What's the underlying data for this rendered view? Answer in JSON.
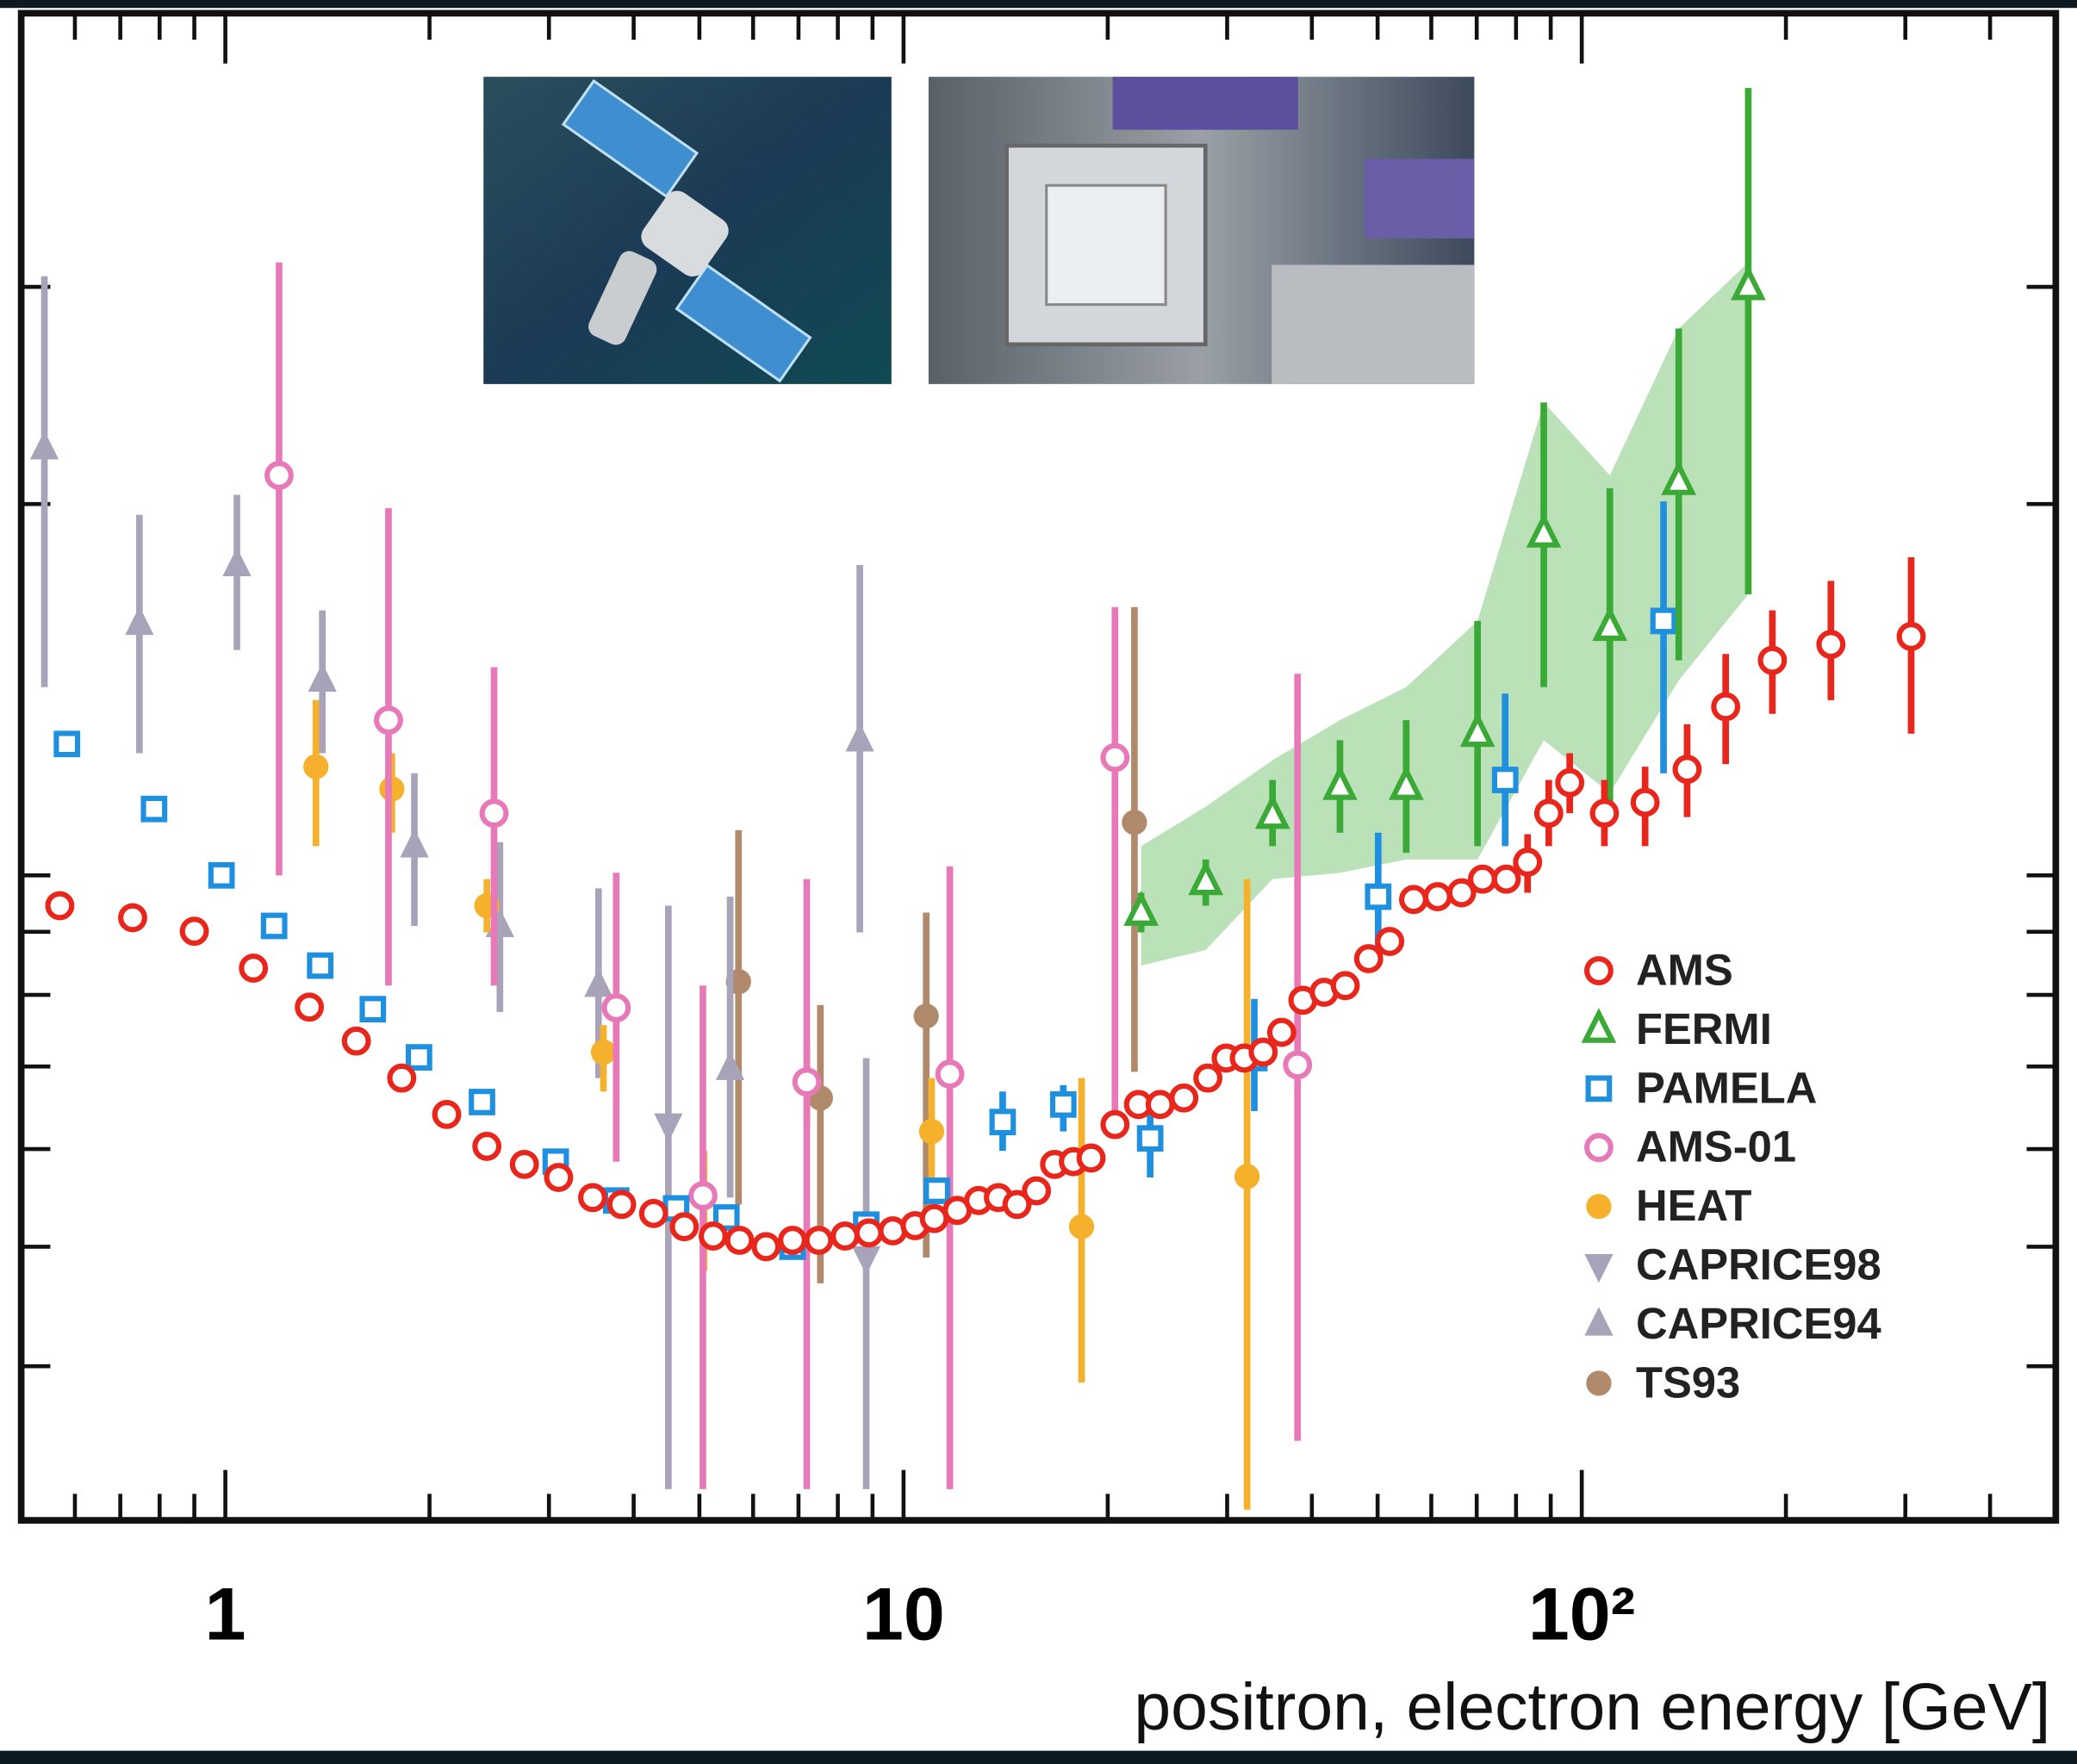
{
  "chart_data": {
    "type": "scatter",
    "xlabel": "positron, electron energy [GeV]",
    "xscale": "log",
    "yscale": "log",
    "xlim": [
      0.5,
      500
    ],
    "ylim": [
      0.03,
      0.5
    ],
    "xticks": [
      1,
      10,
      {
        "value": 100,
        "label": "10²"
      }
    ],
    "xminorticks": [
      0.6,
      0.7,
      0.8,
      0.9,
      2,
      3,
      4,
      5,
      6,
      7,
      8,
      9,
      20,
      30,
      40,
      50,
      60,
      70,
      80,
      90,
      200,
      300,
      400
    ],
    "yticks": [
      0.04,
      0.05,
      0.06,
      0.07,
      0.08,
      0.09,
      0.1,
      0.2,
      0.3
    ],
    "legend": "lower right",
    "series": [
      {
        "name": "AMS",
        "color": "#e8261b",
        "marker": "circle-open",
        "x": [
          0.57,
          0.73,
          0.9,
          1.1,
          1.33,
          1.56,
          1.82,
          2.12,
          2.43,
          2.76,
          3.1,
          3.48,
          3.84,
          4.28,
          4.75,
          5.24,
          5.73,
          6.27,
          6.86,
          7.5,
          8.2,
          8.89,
          9.64,
          10.4,
          11.1,
          12.0,
          12.9,
          13.8,
          14.7,
          15.7,
          16.7,
          17.8,
          18.9,
          20.5,
          22.2,
          23.9,
          25.9,
          28.1,
          29.9,
          31.8,
          33.9,
          36.1,
          38.8,
          41.7,
          44.8,
          48.5,
          52.1,
          56.5,
          61.3,
          66.5,
          71.4,
          77.4,
          83.2,
          89.4,
          96.0,
          108,
          124,
          143,
          163,
          191,
          233,
          306
        ],
        "values": [
          0.0945,
          0.0924,
          0.0901,
          0.0841,
          0.0782,
          0.0734,
          0.0685,
          0.064,
          0.0603,
          0.0583,
          0.0569,
          0.0548,
          0.0541,
          0.0532,
          0.0519,
          0.051,
          0.0506,
          0.05,
          0.0506,
          0.0506,
          0.051,
          0.0513,
          0.0515,
          0.052,
          0.0527,
          0.0535,
          0.0545,
          0.0548,
          0.0541,
          0.0555,
          0.0583,
          0.0586,
          0.059,
          0.0628,
          0.0652,
          0.0652,
          0.066,
          0.0685,
          0.0711,
          0.0711,
          0.0719,
          0.0746,
          0.0792,
          0.0804,
          0.0814,
          0.0856,
          0.0884,
          0.0956,
          0.0961,
          0.0968,
          0.0993,
          0.0993,
          0.1025,
          0.1123,
          0.1189,
          0.1123,
          0.1146,
          0.1219,
          0.137,
          0.1494,
          0.1539,
          0.1562
        ],
        "lower": [
          null,
          null,
          null,
          null,
          null,
          null,
          null,
          null,
          null,
          null,
          null,
          null,
          null,
          null,
          null,
          null,
          null,
          null,
          null,
          null,
          null,
          null,
          null,
          null,
          null,
          null,
          null,
          null,
          null,
          null,
          null,
          null,
          null,
          null,
          null,
          null,
          null,
          null,
          null,
          null,
          null,
          null,
          null,
          null,
          null,
          null,
          null,
          null,
          null,
          null,
          null,
          null,
          0.0968,
          0.1056,
          0.1123,
          0.1056,
          0.1056,
          0.1115,
          0.1231,
          0.1352,
          0.1387,
          0.1303
        ],
        "upper": [
          null,
          null,
          null,
          null,
          null,
          null,
          null,
          null,
          null,
          null,
          null,
          null,
          null,
          null,
          null,
          null,
          null,
          null,
          null,
          null,
          null,
          null,
          null,
          null,
          null,
          null,
          null,
          null,
          null,
          null,
          null,
          null,
          null,
          null,
          null,
          null,
          null,
          null,
          null,
          null,
          null,
          null,
          null,
          null,
          null,
          null,
          null,
          null,
          null,
          null,
          null,
          null,
          0.108,
          0.1195,
          0.1256,
          0.1195,
          0.1225,
          0.1326,
          0.1512,
          0.164,
          0.1733,
          0.1811
        ]
      },
      {
        "name": "FERMI",
        "color": "#3aa935",
        "marker": "triangle-open",
        "x": [
          22.4,
          27.9,
          35.0,
          44.0,
          55.1,
          70.2,
          87.9,
          110,
          139,
          176
        ],
        "values": [
          0.0933,
          0.0988,
          0.1118,
          0.118,
          0.118,
          0.1303,
          0.189,
          0.1588,
          0.2085,
          0.3
        ],
        "lower": [
          0.0899,
          0.0945,
          0.1056,
          0.1083,
          0.1043,
          0.1056,
          0.1421,
          0.1137,
          0.1494,
          0.169
        ],
        "upper": [
          0.0968,
          0.103,
          0.1195,
          0.1287,
          0.1336,
          0.1608,
          0.2418,
          0.206,
          0.2776,
          0.4349
        ],
        "band_lower": [
          0.0845,
          0.087,
          0.0993,
          0.1005,
          0.103,
          0.103,
          0.1287,
          0.1166,
          0.1439,
          0.169
        ],
        "band_upper": [
          0.1056,
          0.1137,
          0.124,
          0.1336,
          0.1421,
          0.1608,
          0.2418,
          0.211,
          0.2776,
          0.314
        ]
      },
      {
        "name": "PAMELA",
        "color": "#1f8fe0",
        "marker": "square-open",
        "x": [
          0.584,
          0.785,
          0.987,
          1.18,
          1.38,
          1.65,
          1.93,
          2.39,
          3.07,
          3.77,
          4.62,
          5.48,
          6.86,
          8.81,
          11.2,
          14.0,
          17.2,
          23.1,
          32.9,
          50.1,
          77.1,
          132
        ],
        "values": [
          0.1278,
          0.1132,
          0.1,
          0.091,
          0.0845,
          0.0779,
          0.0712,
          0.0655,
          0.0586,
          0.0545,
          0.0537,
          0.0528,
          0.05,
          0.0521,
          0.0555,
          0.0631,
          0.0652,
          0.0612,
          0.0711,
          0.0961,
          0.1195,
          0.1608
        ],
        "lower": [
          null,
          null,
          null,
          null,
          null,
          null,
          null,
          null,
          null,
          null,
          null,
          null,
          null,
          null,
          null,
          0.0598,
          0.062,
          0.0569,
          0.0644,
          0.0866,
          0.1056,
          0.121
        ],
        "upper": [
          null,
          null,
          null,
          null,
          null,
          null,
          null,
          null,
          null,
          null,
          null,
          null,
          null,
          null,
          null,
          0.0668,
          0.0676,
          0.0644,
          0.0794,
          0.1083,
          0.1404,
          0.201
        ]
      },
      {
        "name": "AMS-01",
        "color": "#e879b8",
        "marker": "circle-open",
        "x": [
          1.2,
          1.74,
          2.49,
          3.77,
          5.06,
          7.2,
          11.7,
          20.5,
          38.1
        ],
        "values": [
          0.211,
          0.1336,
          0.1123,
          0.0781,
          0.055,
          0.068,
          0.069,
          0.1246,
          0.0702
        ],
        "lower": [
          0.1,
          0.0814,
          0.0814,
          0.0586,
          0.0318,
          0.0318,
          0.0318,
          0.0644,
          0.0348
        ],
        "upper": [
          0.314,
          0.1985,
          0.1475,
          0.1005,
          0.0814,
          0.0993,
          0.1017,
          0.165,
          0.1457
        ]
      },
      {
        "name": "HEAT",
        "color": "#f5b02c",
        "marker": "circle",
        "x": [
          1.36,
          1.76,
          2.43,
          3.61,
          5.08,
          7.2,
          11.0,
          18.3,
          32.1
        ],
        "values": [
          0.1225,
          0.1175,
          0.0945,
          0.0719,
          0.0548,
          0.068,
          0.062,
          0.0519,
          0.057
        ],
        "lower": [
          0.1056,
          0.1083,
          0.0899,
          0.0668,
          0.0478,
          0.0628,
          0.0562,
          0.0388,
          0.0306
        ],
        "upper": [
          0.1387,
          0.1256,
          0.0993,
          0.0756,
          0.0598,
          0.0729,
          0.0685,
          0.0685,
          0.0993
        ]
      },
      {
        "name": "CAPRICE98",
        "color": "#a8a3b8",
        "marker": "triangle-down",
        "x": [
          4.5,
          8.81
        ],
        "values": [
          0.0628,
          0.049
        ],
        "lower": [
          0.0318,
          0.0318
        ],
        "upper": [
          0.0945,
          0.0711
        ]
      },
      {
        "name": "CAPRICE94",
        "color": "#a8a3b8",
        "marker": "triangle",
        "x": [
          0.541,
          0.747,
          1.04,
          1.39,
          1.9,
          2.54,
          3.55,
          5.55,
          8.62
        ],
        "values": [
          0.222,
          0.16,
          0.1785,
          0.1439,
          0.1056,
          0.091,
          0.0814,
          0.0697,
          0.1287
        ],
        "lower": [
          0.1421,
          0.1256,
          0.1523,
          0.1256,
          0.091,
          0.0775,
          0.0685,
          0.0548,
          0.0899
        ],
        "upper": [
          0.306,
          0.196,
          0.2035,
          0.164,
          0.121,
          0.1064,
          0.0976,
          0.0961,
          0.1785
        ]
      },
      {
        "name": "TS93",
        "color": "#b08a6a",
        "marker": "circle",
        "x": [
          5.71,
          7.54,
          10.8,
          21.9
        ],
        "values": [
          0.082,
          0.066,
          0.0769,
          0.1104
        ],
        "lower": [
          0.0541,
          0.0467,
          0.049,
          0.0693
        ],
        "upper": [
          0.1088,
          0.0785,
          0.0933,
          0.165
        ]
      }
    ]
  }
}
